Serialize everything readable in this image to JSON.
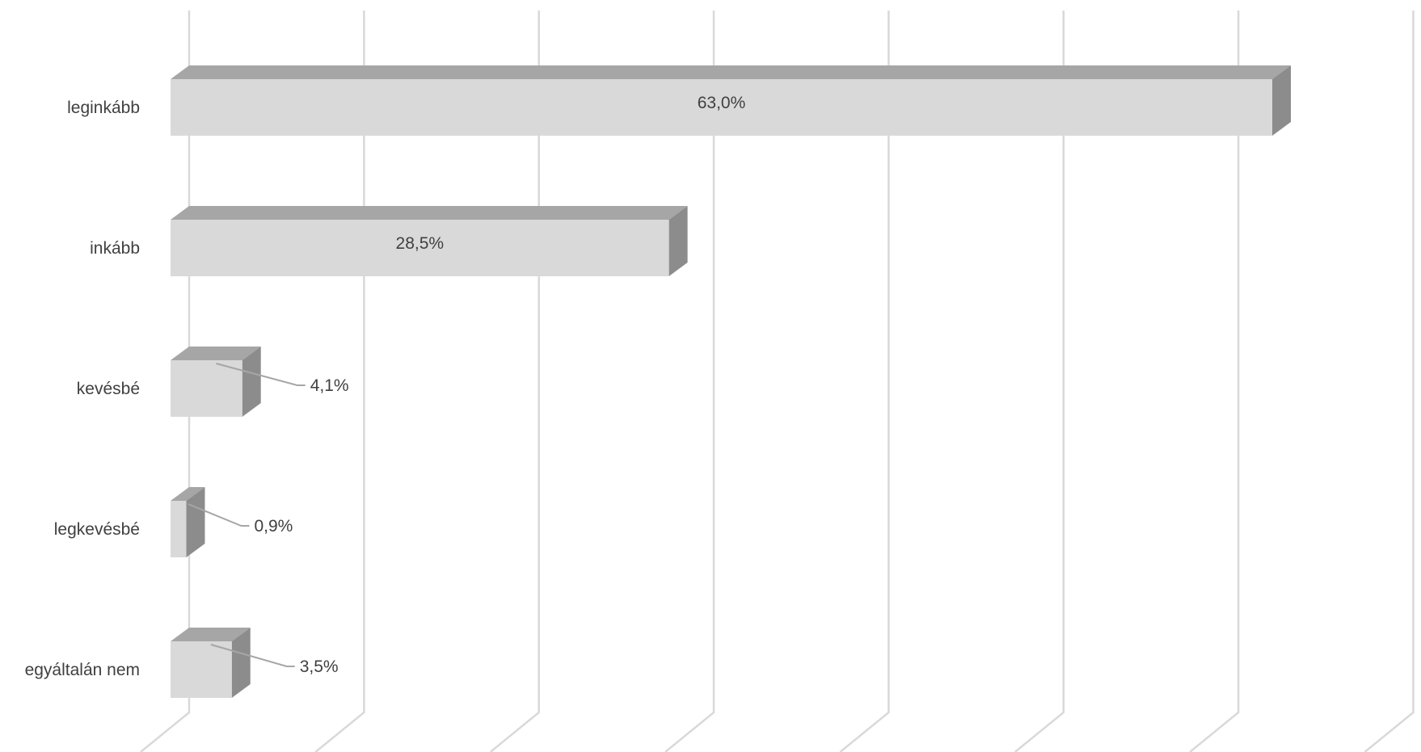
{
  "chart_data": {
    "type": "bar",
    "orientation": "horizontal",
    "style": "3d",
    "categories": [
      "leginkább",
      "inkább",
      "kevésbé",
      "legkevésbé",
      "egyáltalán nem"
    ],
    "values": [
      63.0,
      28.5,
      4.1,
      0.9,
      3.5
    ],
    "value_labels": [
      "63,0%",
      "28,5%",
      "4,1%",
      "0,9%",
      "3,5%"
    ],
    "unit": "%",
    "xlim": [
      0,
      70
    ],
    "grid": true,
    "legend": "none",
    "title": "",
    "xlabel": "",
    "ylabel": ""
  },
  "colors": {
    "bar_front": "#d9d9d9",
    "bar_top": "#a6a6a6",
    "bar_side": "#8c8c8c",
    "gridline": "#d9d9d9",
    "leader_line": "#a6a6a6",
    "text": "#404040"
  }
}
